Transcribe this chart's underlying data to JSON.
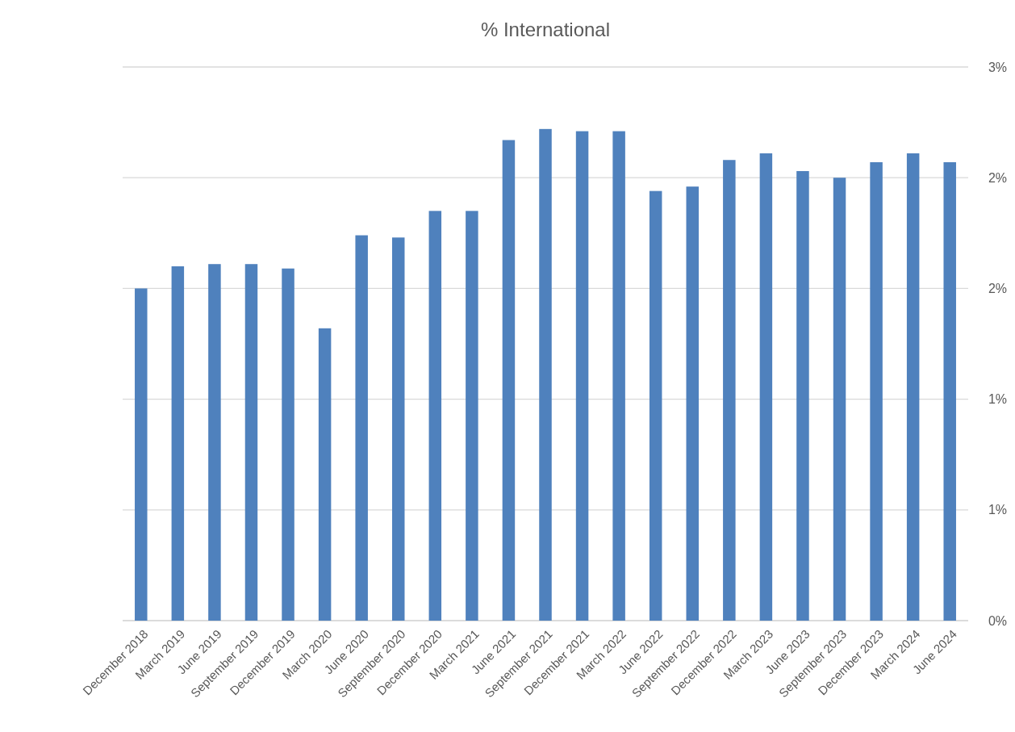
{
  "chart_data": {
    "type": "bar",
    "title": "% International",
    "categories": [
      "December 2018",
      "March 2019",
      "June 2019",
      "September 2019",
      "December 2019",
      "March 2020",
      "June 2020",
      "September 2020",
      "December 2020",
      "March 2021",
      "June 2021",
      "September 2021",
      "December 2021",
      "March 2022",
      "June 2022",
      "September 2022",
      "December 2022",
      "March 2023",
      "June 2023",
      "September 2023",
      "December 2023",
      "March 2024",
      "June 2024"
    ],
    "values": [
      1.5,
      1.6,
      1.61,
      1.61,
      1.59,
      1.32,
      1.74,
      1.73,
      1.85,
      1.85,
      2.17,
      2.22,
      2.21,
      2.21,
      1.94,
      1.96,
      2.08,
      2.11,
      2.03,
      2.0,
      2.07,
      2.11,
      2.07
    ],
    "color": "#4f81bd",
    "ylim": [
      0,
      2.5
    ],
    "yticks": [
      {
        "value": 0,
        "label": "0%"
      },
      {
        "value": 0.5,
        "label": "1%"
      },
      {
        "value": 1,
        "label": "1%"
      },
      {
        "value": 1.5,
        "label": "2%"
      },
      {
        "value": 2,
        "label": "2%"
      },
      {
        "value": 2.5,
        "label": "3%"
      }
    ],
    "grid": "y"
  }
}
